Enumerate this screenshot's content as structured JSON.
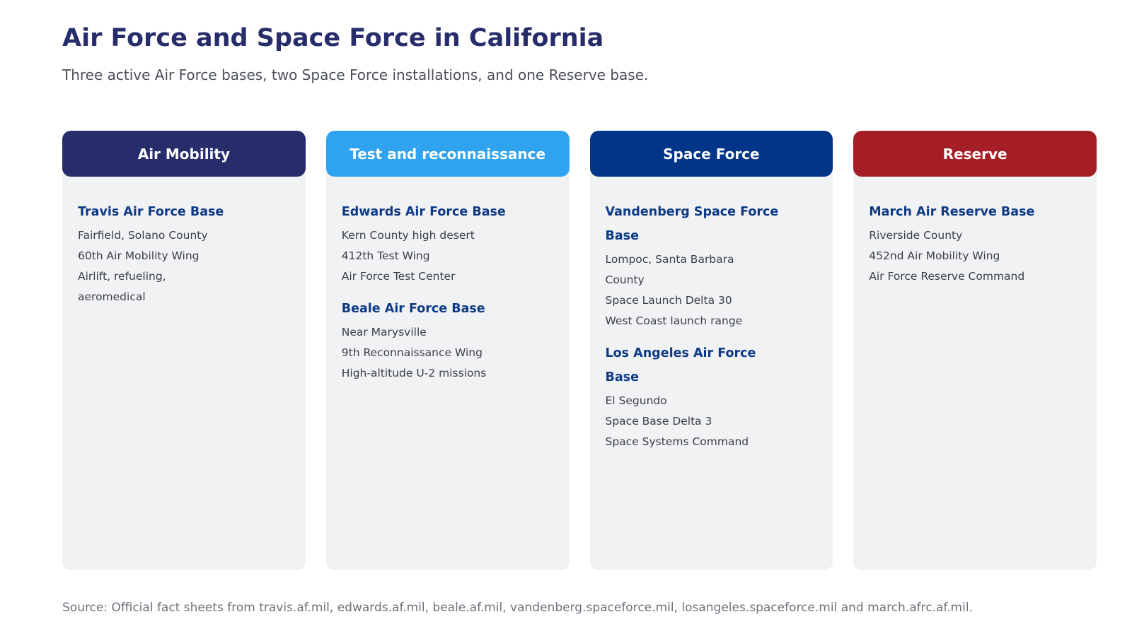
{
  "title": "Air Force and Space Force in California",
  "subtitle": "Three active Air Force bases, two Space Force installations, and one Reserve base.",
  "columns": [
    {
      "label": "Air Mobility",
      "color": "#272d6b",
      "bases": [
        {
          "name": "Travis Air Force Base",
          "details": [
            "Fairfield, Solano County",
            "60th Air Mobility Wing",
            "Airlift, refueling,\naeromedical"
          ]
        }
      ]
    },
    {
      "label": "Test and reconnaissance",
      "color": "#2fa3ef",
      "bases": [
        {
          "name": "Edwards Air Force Base",
          "details": [
            "Kern County high desert",
            "412th Test Wing",
            "Air Force Test Center"
          ]
        },
        {
          "name": "Beale Air Force Base",
          "details": [
            "Near Marysville",
            "9th Reconnaissance Wing",
            "High-altitude U-2 missions"
          ]
        }
      ]
    },
    {
      "label": "Space Force",
      "color": "#003587",
      "bases": [
        {
          "name": "Vandenberg Space Force\nBase",
          "details": [
            "Lompoc, Santa Barbara\nCounty",
            "Space Launch Delta 30",
            "West Coast launch range"
          ]
        },
        {
          "name": "Los Angeles Air Force\nBase",
          "details": [
            "El Segundo",
            "Space Base Delta 3",
            "Space Systems Command"
          ]
        }
      ]
    },
    {
      "label": "Reserve",
      "color": "#a61e25",
      "bases": [
        {
          "name": "March Air Reserve Base",
          "details": [
            "Riverside County",
            "452nd Air Mobility Wing",
            "Air Force Reserve Command"
          ]
        }
      ]
    }
  ],
  "source": "Source: Official fact sheets from travis.af.mil, edwards.af.mil, beale.af.mil, vandenberg.spaceforce.mil, losangeles.spaceforce.mil and march.afrc.af.mil."
}
